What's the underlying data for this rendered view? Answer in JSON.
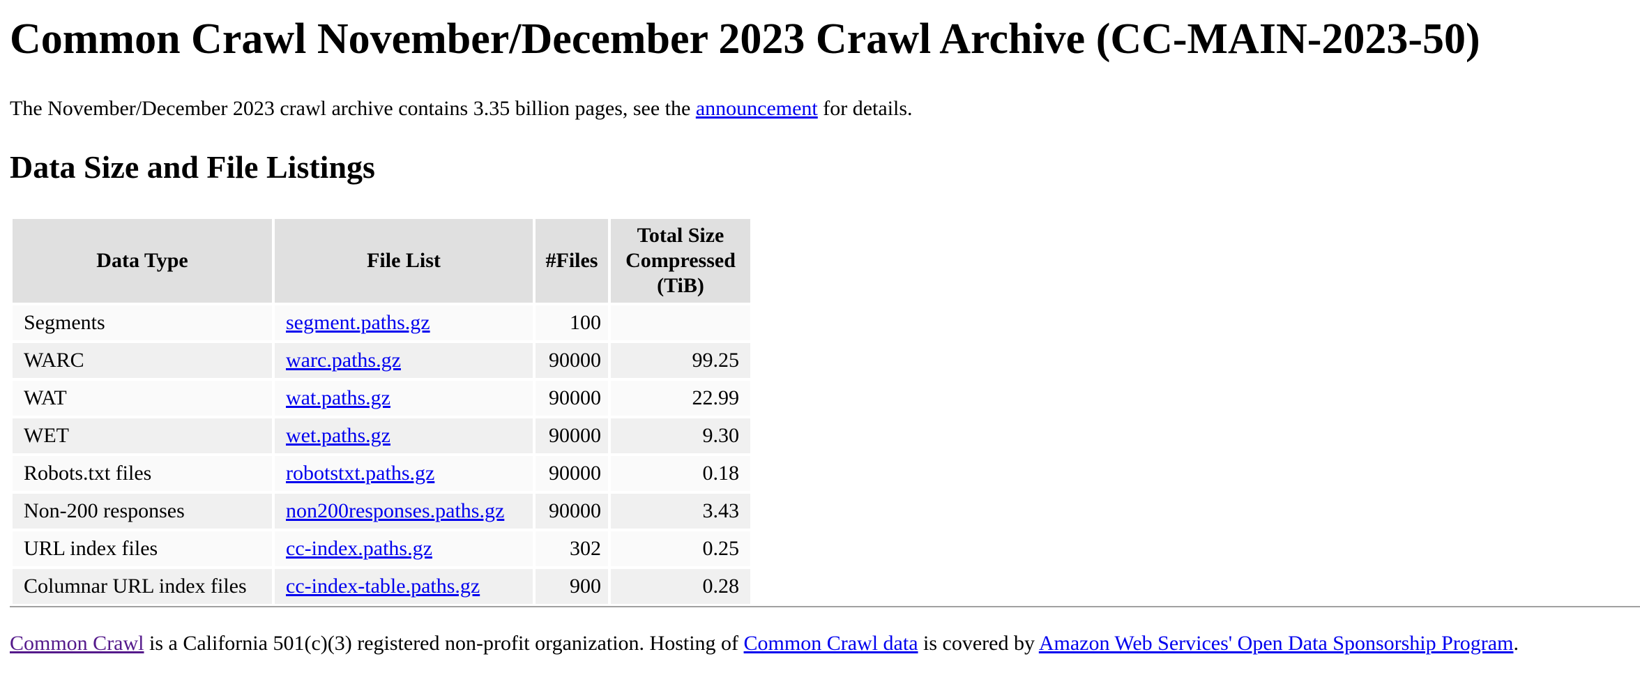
{
  "page": {
    "title": "Common Crawl November/December 2023 Crawl Archive (CC-MAIN-2023-50)"
  },
  "intro": {
    "text_before": "The November/December 2023 crawl archive contains 3.35 billion pages, see the ",
    "link": "announcement",
    "text_after": " for details."
  },
  "section": {
    "heading": "Data Size and File Listings"
  },
  "table": {
    "headers": {
      "data_type": "Data Type",
      "file_list": "File List",
      "files": "#Files",
      "size_line1": "Total Size",
      "size_line2": "Compressed (TiB)"
    },
    "rows": [
      {
        "type": "Segments",
        "file": "segment.paths.gz",
        "count": "100",
        "size": ""
      },
      {
        "type": "WARC",
        "file": "warc.paths.gz",
        "count": "90000",
        "size": "99.25"
      },
      {
        "type": "WAT",
        "file": "wat.paths.gz",
        "count": "90000",
        "size": "22.99"
      },
      {
        "type": "WET",
        "file": "wet.paths.gz",
        "count": "90000",
        "size": "9.30"
      },
      {
        "type": "Robots.txt files",
        "file": "robotstxt.paths.gz",
        "count": "90000",
        "size": "0.18"
      },
      {
        "type": "Non-200 responses",
        "file": "non200responses.paths.gz",
        "count": "90000",
        "size": "3.43"
      },
      {
        "type": "URL index files",
        "file": "cc-index.paths.gz",
        "count": "302",
        "size": "0.25"
      },
      {
        "type": "Columnar URL index files",
        "file": "cc-index-table.paths.gz",
        "count": "900",
        "size": "0.28"
      }
    ]
  },
  "footer": {
    "link1": "Common Crawl",
    "text1": " is a California 501(c)(3) registered non-profit organization. Hosting of ",
    "link2": "Common Crawl data",
    "text2": " is covered by ",
    "link3": "Amazon Web Services' Open Data Sponsorship Program",
    "text3": "."
  },
  "colors": {
    "link": "#0000ee",
    "visited_link": "#551a8b",
    "header_bg": "#e0e0e0",
    "row_odd_bg": "#fafafa",
    "row_even_bg": "#f0f0f0"
  }
}
